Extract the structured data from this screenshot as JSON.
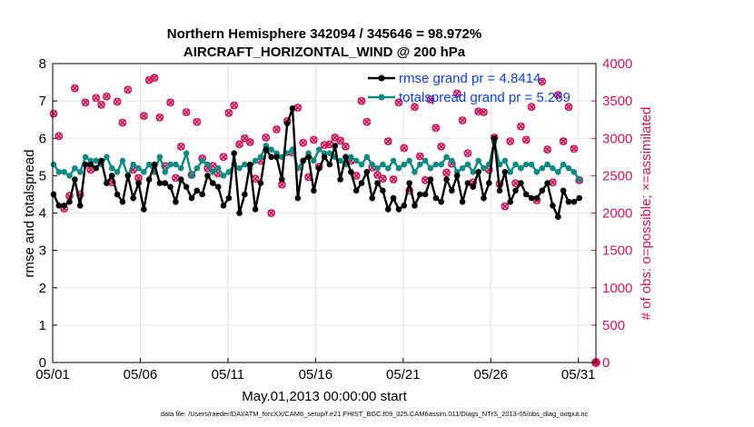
{
  "chart_data": {
    "type": "line",
    "title_line1": "Northern Hemisphere 342094 / 345646 = 98.972%",
    "title_line2": "AIRCRAFT_HORIZONTAL_WIND @ 200 hPa",
    "xlabel": "May.01,2013 00:00:00 start",
    "ylabel": "rmse and totalspread",
    "ylabel_right": "# of obs: o=possible; ×=assimilated",
    "footnote": "data file: /Users/raeder/DAI/ATM_forcXX/CAM6_setup/f.e21.FHIST_BGC.f09_025.CAM6assim.011/Diags_NTrS_2013-05/obs_diag_output.nc",
    "xlim": [
      1,
      32
    ],
    "ylim": [
      0,
      8
    ],
    "ylim_right": [
      0,
      4000
    ],
    "x_ticks": [
      {
        "value": 1,
        "label": "05/01"
      },
      {
        "value": 6,
        "label": "05/06"
      },
      {
        "value": 11,
        "label": "05/11"
      },
      {
        "value": 16,
        "label": "05/16"
      },
      {
        "value": 21,
        "label": "05/21"
      },
      {
        "value": 26,
        "label": "05/26"
      },
      {
        "value": 31,
        "label": "05/31"
      }
    ],
    "y_ticks": [
      "0",
      "1",
      "2",
      "3",
      "4",
      "5",
      "6",
      "7",
      "8"
    ],
    "y_ticks_right": [
      "0",
      "500",
      "1000",
      "1500",
      "2000",
      "2500",
      "3000",
      "3500",
      "4000"
    ],
    "grid": true,
    "series": [
      {
        "name": "rmse",
        "legend": "rmse grand pr = 4.8414",
        "color": "#000000",
        "axis": "left",
        "values": [
          4.5,
          4.2,
          4.2,
          4.3,
          4.9,
          4.2,
          5.3,
          5.3,
          5.2,
          5.4,
          4.8,
          5.0,
          4.5,
          4.3,
          5.0,
          4.4,
          4.8,
          4.1,
          4.9,
          5.3,
          4.8,
          4.8,
          4.7,
          4.3,
          4.9,
          4.7,
          4.4,
          4.6,
          4.5,
          5.0,
          4.8,
          4.7,
          4.2,
          4.4,
          5.6,
          4.0,
          4.5,
          5.3,
          4.1,
          4.8,
          5.7,
          5.5,
          5.5,
          4.9,
          6.4,
          6.8,
          4.4,
          5.4,
          5.5,
          4.6,
          5.2,
          5.5,
          5.3,
          5.8,
          4.9,
          5.5,
          5.1,
          4.6,
          4.8,
          5.1,
          4.4,
          4.8,
          4.6,
          4.1,
          4.4,
          4.1,
          4.2,
          4.8,
          4.2,
          4.5,
          4.5,
          4.9,
          4.4,
          4.3,
          4.9,
          4.6,
          5.0,
          4.3,
          4.8,
          4.7,
          5.1,
          4.4,
          4.8,
          6.0,
          4.6,
          5.1,
          4.3,
          4.6,
          4.8,
          4.5,
          4.4,
          4.4,
          4.6,
          4.8,
          4.2,
          3.9,
          4.6,
          4.3,
          4.3,
          4.4
        ]
      },
      {
        "name": "totalspread",
        "legend": "totalspread grand pr = 5.269",
        "color": "#118a82",
        "axis": "left",
        "values": [
          5.3,
          5.1,
          5.1,
          5.0,
          5.2,
          5.1,
          5.5,
          5.4,
          5.4,
          5.3,
          5.5,
          5.2,
          5.1,
          5.4,
          5.0,
          5.3,
          5.2,
          5.1,
          5.3,
          5.1,
          5.5,
          5.1,
          5.3,
          5.3,
          5.2,
          5.6,
          5.0,
          5.2,
          5.4,
          5.3,
          5.1,
          5.2,
          5.0,
          5.1,
          5.3,
          5.2,
          5.3,
          5.2,
          5.4,
          5.5,
          5.8,
          5.7,
          5.6,
          5.5,
          5.6,
          5.7,
          5.2,
          5.4,
          5.6,
          5.4,
          5.7,
          5.6,
          5.6,
          5.5,
          5.4,
          5.3,
          5.5,
          5.4,
          5.3,
          5.5,
          5.3,
          5.2,
          5.3,
          5.2,
          5.4,
          5.2,
          5.3,
          5.4,
          5.1,
          5.3,
          5.4,
          5.2,
          5.3,
          5.3,
          5.5,
          5.4,
          5.1,
          5.2,
          5.3,
          5.1,
          5.4,
          5.2,
          5.3,
          5.9,
          5.3,
          5.4,
          5.1,
          5.3,
          5.2,
          5.3,
          5.3,
          5.1,
          5.2,
          5.3,
          5.2,
          5.1,
          5.3,
          5.2,
          5.1,
          4.9
        ]
      },
      {
        "name": "obs_possible",
        "color": "#d0165a",
        "axis": "right",
        "marker": "o",
        "values": [
          3330,
          3030,
          2060,
          2230,
          3670,
          2250,
          3480,
          2580,
          3540,
          3450,
          3560,
          2410,
          3490,
          3210,
          3650,
          2580,
          2470,
          3300,
          3780,
          3810,
          3280,
          2630,
          3480,
          2470,
          2890,
          3350,
          2510,
          3220,
          2730,
          2600,
          2630,
          2530,
          2750,
          3340,
          3440,
          2920,
          3000,
          2950,
          2460,
          2700,
          3010,
          2000,
          3120,
          2380,
          3230,
          2810,
          3410,
          2940,
          2480,
          2980,
          2620,
          2910,
          2920,
          3010,
          2970,
          2890,
          2700,
          2500,
          3500,
          3220,
          2610,
          2510,
          2460,
          2960,
          2450,
          3480,
          2870,
          2300,
          3420,
          2760,
          2440,
          3520,
          3140,
          2890,
          2540,
          2660,
          3600,
          3240,
          2800,
          2410,
          3360,
          3350,
          2580,
          3010,
          2390,
          2090,
          2960,
          2400,
          3160,
          2980,
          3420,
          2170,
          3760,
          2850,
          2410,
          3580,
          2960,
          3420,
          2860,
          2440
        ]
      },
      {
        "name": "obs_assimilated",
        "color": "#d0165a",
        "axis": "right",
        "marker": "x",
        "values": [
          3330,
          3030,
          2060,
          2230,
          3670,
          2250,
          3480,
          2580,
          3540,
          3450,
          3560,
          2410,
          3490,
          3210,
          3650,
          2580,
          2470,
          3300,
          3780,
          3810,
          3280,
          2630,
          3480,
          2470,
          2890,
          3350,
          2510,
          3220,
          2730,
          2600,
          2630,
          2530,
          2750,
          3340,
          3440,
          2920,
          3000,
          2950,
          2460,
          2700,
          3010,
          2000,
          3120,
          2380,
          3230,
          2810,
          3410,
          2940,
          2480,
          2980,
          2620,
          2910,
          2920,
          3010,
          2970,
          2890,
          2700,
          2500,
          3500,
          3220,
          2610,
          2510,
          2460,
          2960,
          2450,
          3480,
          2870,
          2300,
          3420,
          2760,
          2440,
          3520,
          3140,
          2890,
          2540,
          2660,
          3600,
          3240,
          2800,
          2410,
          3360,
          3350,
          2580,
          3010,
          2390,
          2090,
          2960,
          2400,
          3160,
          2980,
          3420,
          2170,
          3760,
          2850,
          2410,
          3580,
          2960,
          3420,
          2860,
          2440
        ]
      }
    ],
    "end_marker": {
      "x": 32,
      "y_right": 0
    }
  }
}
